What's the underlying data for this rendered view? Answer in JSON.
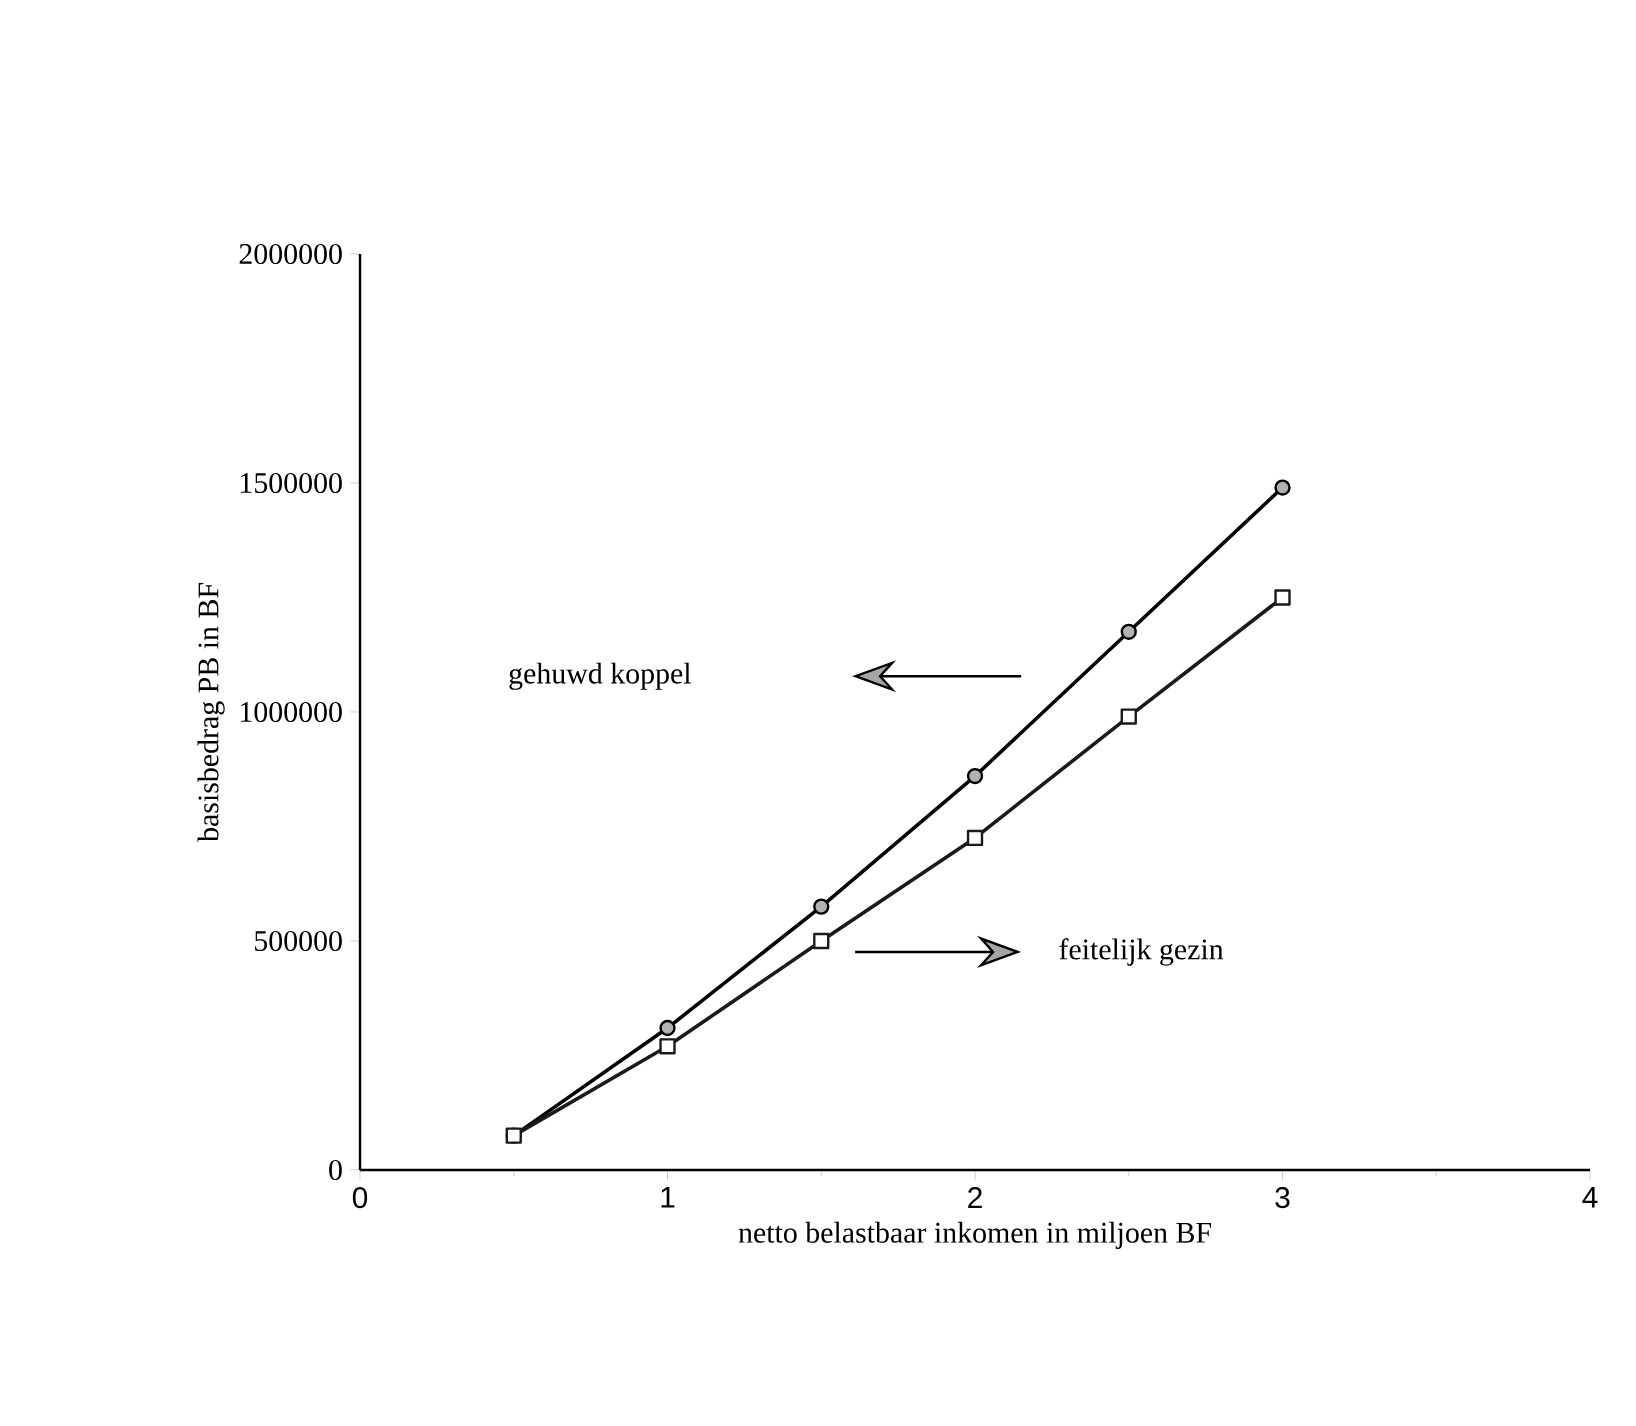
{
  "chart_data": {
    "type": "line",
    "xlabel": "netto belastbaar inkomen in miljoen BF",
    "ylabel": "basisbedrag PB in BF",
    "xlim": [
      0,
      4
    ],
    "xticks": [
      0,
      1,
      2,
      3,
      4
    ],
    "ylim": [
      0,
      2000000
    ],
    "yticks": [
      0,
      500000,
      1000000,
      1500000,
      2000000
    ],
    "x": [
      0.5,
      1,
      1.5,
      2,
      2.5,
      3
    ],
    "series": [
      {
        "color": "#000000",
        "marker": "circle",
        "values": [
          75000,
          310000,
          575000,
          860000,
          1175000,
          1490000
        ]
      },
      {
        "color": "#1a1a1a",
        "marker": "square",
        "values": [
          75000,
          270000,
          500000,
          725000,
          990000,
          1250000
        ]
      }
    ],
    "annotations": [
      "gehuwd koppel",
      "feitelijk gezin"
    ]
  }
}
